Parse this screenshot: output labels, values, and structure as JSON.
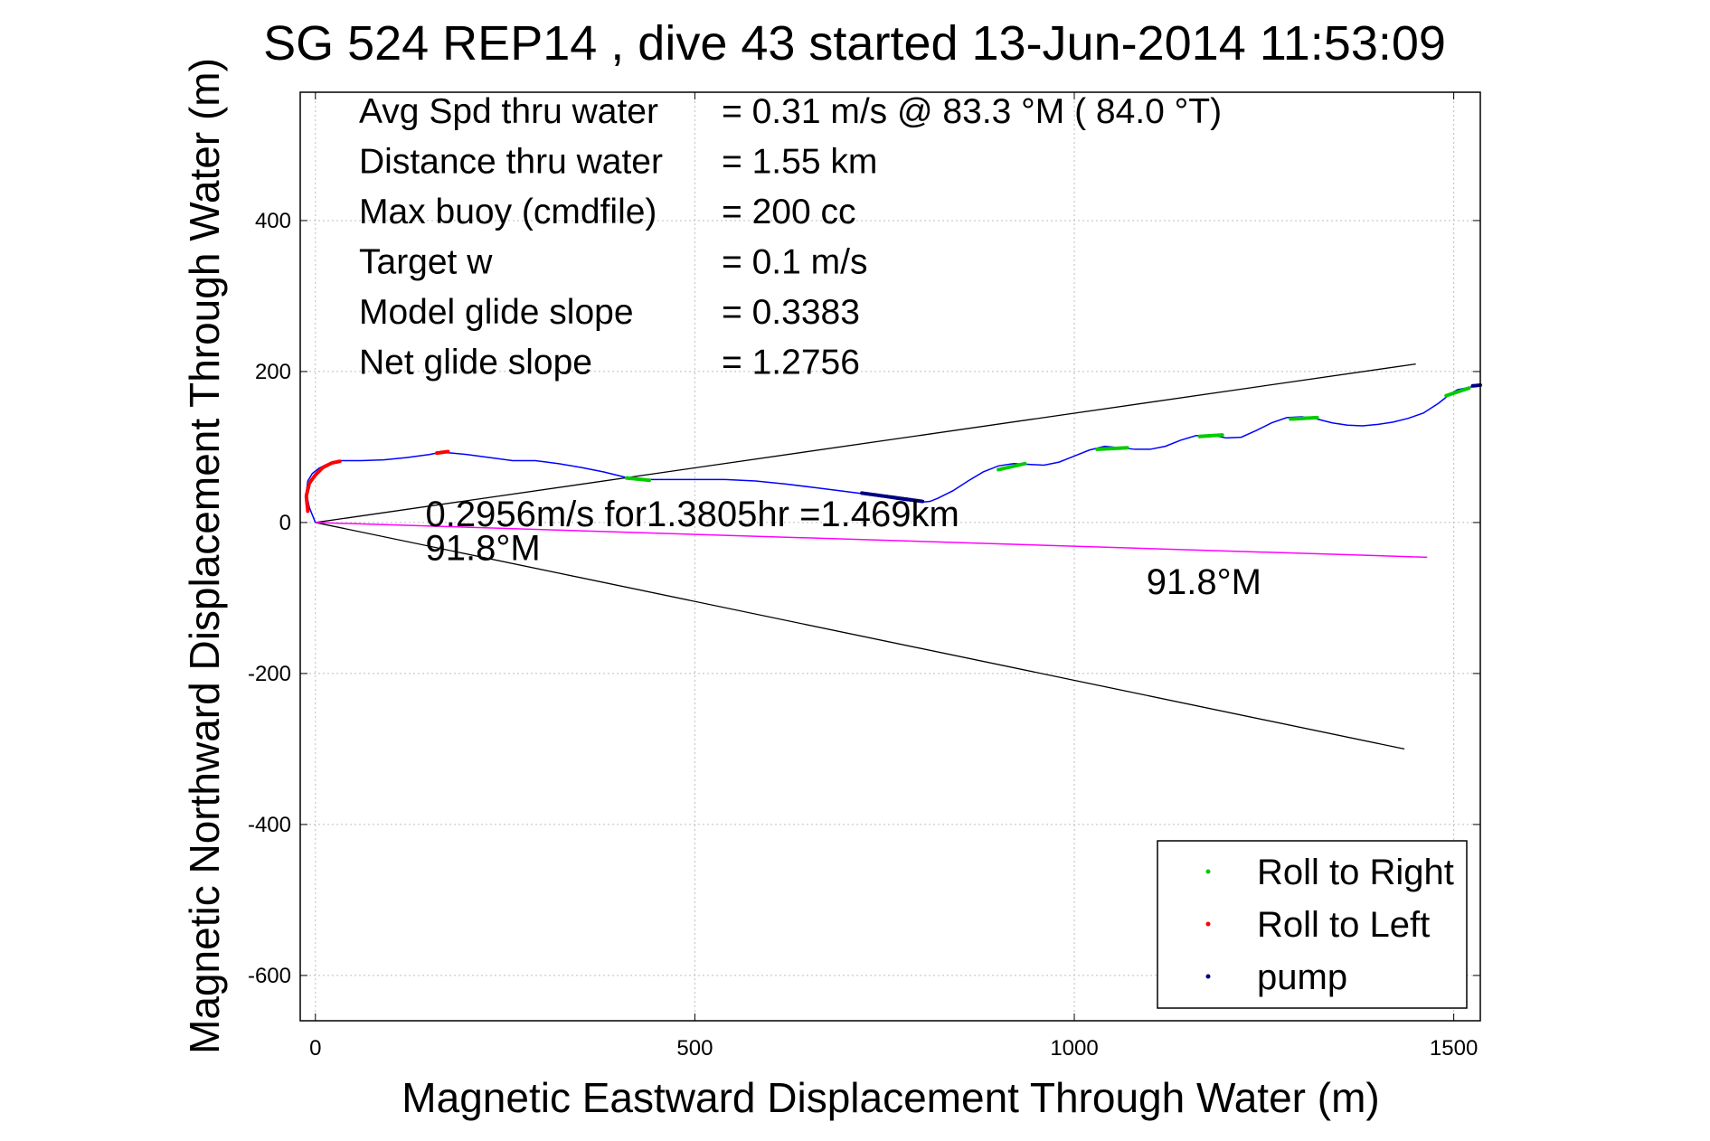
{
  "chart_data": {
    "type": "line",
    "title": "SG 524   REP14  , dive 43 started 13-Jun-2014 11:53:09",
    "xlabel": "Magnetic Eastward Displacement Through Water (m)",
    "ylabel": "Magnetic Northward Displacement Through Water (m)",
    "xlim": [
      -20,
      1535
    ],
    "ylim": [
      -660,
      570
    ],
    "xticks": [
      0,
      500,
      1000,
      1500
    ],
    "yticks": [
      -600,
      -400,
      -200,
      0,
      200,
      400
    ],
    "grid": true,
    "legend_position": "bottom-right",
    "info_lines": [
      {
        "label": "Avg Spd thru water",
        "value": "=  0.31 m/s @  83.3 °M ( 84.0 °T)"
      },
      {
        "label": "Distance thru water",
        "value": "=  1.55 km"
      },
      {
        "label": "Max buoy (cmdfile)",
        "value": "= 200 cc"
      },
      {
        "label": "Target w",
        "value": "= 0.1 m/s"
      },
      {
        "label": "Model glide slope",
        "value": "= 0.3383"
      },
      {
        "label": "Net glide slope",
        "value": "= 1.2756"
      }
    ],
    "annotations": [
      {
        "text": "0.2956m/s for1.3805hr =1.469km",
        "x": 145,
        "y": -5
      },
      {
        "text": "91.8°M",
        "x": 145,
        "y": -50
      },
      {
        "text": "91.8°M",
        "x": 1095,
        "y": -95
      }
    ],
    "track": {
      "name": "track",
      "color": "#0000ff",
      "x": [
        0,
        -8,
        -12,
        -10,
        -4,
        5,
        15,
        25,
        30,
        60,
        90,
        120,
        150,
        165,
        180,
        200,
        230,
        260,
        290,
        320,
        350,
        380,
        400,
        420,
        460,
        500,
        540,
        580,
        620,
        660,
        700,
        730,
        760,
        780,
        800,
        810,
        820,
        840,
        860,
        880,
        900,
        920,
        940,
        960,
        980,
        1000,
        1020,
        1040,
        1060,
        1080,
        1100,
        1120,
        1140,
        1160,
        1180,
        1200,
        1220,
        1240,
        1260,
        1280,
        1300,
        1320,
        1340,
        1360,
        1380,
        1400,
        1420,
        1440,
        1460,
        1480,
        1495,
        1505,
        1515,
        1525,
        1535
      ],
      "y": [
        0,
        20,
        40,
        55,
        65,
        72,
        77,
        80,
        82,
        82,
        83,
        86,
        90,
        93,
        92,
        90,
        86,
        82,
        82,
        78,
        73,
        67,
        62,
        57,
        57,
        57,
        57,
        55,
        51,
        46,
        41,
        37,
        32,
        29,
        27,
        28,
        32,
        42,
        55,
        67,
        75,
        78,
        77,
        76,
        80,
        88,
        96,
        101,
        99,
        97,
        97,
        101,
        109,
        115,
        116,
        112,
        113,
        122,
        132,
        139,
        140,
        137,
        132,
        129,
        128,
        130,
        133,
        138,
        145,
        158,
        170,
        176,
        178,
        180,
        182
      ]
    },
    "roll_right_segments": [
      {
        "x": [
          410,
          440
        ],
        "y": [
          59,
          56
        ]
      },
      {
        "x": [
          900,
          935
        ],
        "y": [
          70,
          78
        ]
      },
      {
        "x": [
          1030,
          1070
        ],
        "y": [
          97,
          99
        ]
      },
      {
        "x": [
          1165,
          1195
        ],
        "y": [
          114,
          116
        ]
      },
      {
        "x": [
          1285,
          1320
        ],
        "y": [
          137,
          139
        ]
      },
      {
        "x": [
          1490,
          1520
        ],
        "y": [
          168,
          178
        ]
      }
    ],
    "roll_left_segments": [
      {
        "x": [
          -10,
          -12,
          -8,
          0,
          10,
          22,
          32
        ],
        "y": [
          15,
          35,
          52,
          63,
          73,
          79,
          81
        ]
      },
      {
        "x": [
          160,
          175
        ],
        "y": [
          92,
          94
        ]
      }
    ],
    "pump_segments": [
      {
        "x": [
          720,
          800
        ],
        "y": [
          39,
          28
        ]
      },
      {
        "x": [
          1525,
          1535
        ],
        "y": [
          181,
          182
        ]
      }
    ],
    "heading_line": {
      "name": "91.8°M",
      "color": "#ff00ff",
      "x": [
        0,
        1465
      ],
      "y": [
        0,
        -46
      ]
    },
    "envelope_lines": [
      {
        "color": "#000000",
        "x": [
          0,
          1450
        ],
        "y": [
          0,
          210
        ]
      },
      {
        "color": "#000000",
        "x": [
          0,
          1435
        ],
        "y": [
          0,
          -300
        ]
      }
    ],
    "legend": [
      {
        "label": "Roll to Right",
        "color": "#00cc00"
      },
      {
        "label": "Roll to Left",
        "color": "#ff0000"
      },
      {
        "label": "pump",
        "color": "#000080"
      }
    ]
  }
}
